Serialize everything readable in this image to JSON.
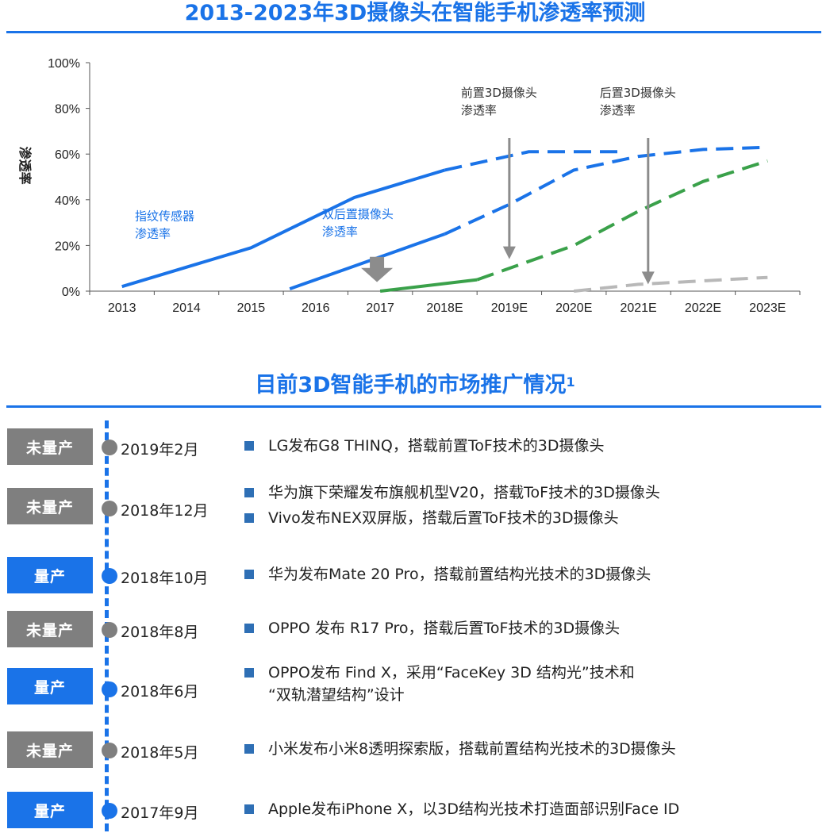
{
  "header_chart": "2013-2023年3D摄像头在智能手机渗透率预测",
  "header_timeline": "目前3D智能手机的市场推广情况",
  "header_timeline_sup": "1",
  "colors": {
    "blue": "#1a73e8",
    "green": "#3aa14a",
    "gray": "#b8b8b8",
    "dark_gray": "#7f7f7f",
    "arrow": "#8c8c8c"
  },
  "chart_data": {
    "type": "line",
    "ylabel": "渗透率",
    "categories": [
      "2013",
      "2014",
      "2015",
      "2016",
      "2017",
      "2018E",
      "2019E",
      "2020E",
      "2021E",
      "2022E",
      "2023E"
    ],
    "ylim": [
      0,
      100
    ],
    "yticks": [
      "0%",
      "20%",
      "40%",
      "60%",
      "80%",
      "100%"
    ],
    "grid": false,
    "series": [
      {
        "name": "指纹传感器渗透率",
        "color": "blue",
        "points": [
          [
            0,
            2
          ],
          [
            2,
            19
          ],
          [
            3.6,
            41
          ],
          [
            5,
            53
          ]
        ],
        "projected": [
          [
            5,
            53
          ],
          [
            6.3,
            61
          ],
          [
            7,
            61
          ],
          [
            7.8,
            61
          ]
        ]
      },
      {
        "name": "双后置摄像头渗透率",
        "color": "blue",
        "points": [
          [
            2.6,
            1
          ],
          [
            3.5,
            10
          ],
          [
            4.5,
            20
          ],
          [
            5,
            25
          ]
        ],
        "projected": [
          [
            5,
            25
          ],
          [
            6,
            38
          ],
          [
            7,
            53
          ],
          [
            8,
            59
          ],
          [
            9,
            62
          ],
          [
            10,
            63
          ]
        ]
      },
      {
        "name": "前置3D摄像头渗透率",
        "color": "green",
        "points": [
          [
            4,
            0
          ],
          [
            5.5,
            5
          ]
        ],
        "projected": [
          [
            5.5,
            5
          ],
          [
            7,
            20
          ],
          [
            8,
            35
          ],
          [
            9,
            48
          ],
          [
            10,
            57
          ]
        ]
      },
      {
        "name": "后置3D摄像头渗透率",
        "color": "gray",
        "points": [],
        "projected": [
          [
            7,
            0
          ],
          [
            8,
            3
          ],
          [
            9,
            4.5
          ],
          [
            10,
            6
          ]
        ]
      }
    ],
    "annotations": [
      {
        "text": [
          "指纹传感器",
          "渗透率"
        ],
        "color": "blue",
        "at": [
          0.7,
          31
        ]
      },
      {
        "text": [
          "双后置摄像头",
          "渗透率"
        ],
        "color": "blue",
        "at": [
          3.6,
          32
        ]
      },
      {
        "text": [
          "前置3D摄像头",
          "渗透率"
        ],
        "color": "dark",
        "at": [
          5.75,
          85
        ]
      },
      {
        "text": [
          "后置3D摄像头",
          "渗透率"
        ],
        "color": "dark",
        "at": [
          7.9,
          85
        ]
      }
    ],
    "arrows": [
      {
        "type": "thin",
        "x": 6.5,
        "from": 67,
        "to": 14
      },
      {
        "type": "thin",
        "x": 8.65,
        "from": 67,
        "to": 3
      },
      {
        "type": "block",
        "x": 4.45,
        "from": 15,
        "to": 4
      }
    ]
  },
  "timeline": [
    {
      "status": "未量产",
      "mass": false,
      "date": "2019年2月",
      "events": [
        "LG发布G8 THINQ，搭载前置ToF技术的3D摄像头"
      ]
    },
    {
      "status": "未量产",
      "mass": false,
      "date": "2018年12月",
      "events": [
        "华为旗下荣耀发布旗舰机型V20，搭载ToF技术的3D摄像头",
        "Vivo发布NEX双屏版，搭载后置ToF技术的3D摄像头"
      ]
    },
    {
      "status": "量产",
      "mass": true,
      "date": "2018年10月",
      "events": [
        "华为发布Mate 20 Pro，搭载前置结构光技术的3D摄像头"
      ]
    },
    {
      "status": "未量产",
      "mass": false,
      "date": "2018年8月",
      "events": [
        "OPPO 发布 R17 Pro，搭载后置ToF技术的3D摄像头"
      ]
    },
    {
      "status": "量产",
      "mass": true,
      "date": "2018年6月",
      "events": [
        "OPPO发布 Find X，采用“FaceKey 3D 结构光”技术和\n“双轨潜望结构”设计"
      ]
    },
    {
      "status": "未量产",
      "mass": false,
      "date": "2018年5月",
      "events": [
        "小米发布小米8透明探索版，搭载前置结构光技术的3D摄像头"
      ]
    },
    {
      "status": "量产",
      "mass": true,
      "date": "2017年9月",
      "events": [
        "Apple发布iPhone X，以3D结构光技术打造面部识别Face ID"
      ]
    }
  ]
}
